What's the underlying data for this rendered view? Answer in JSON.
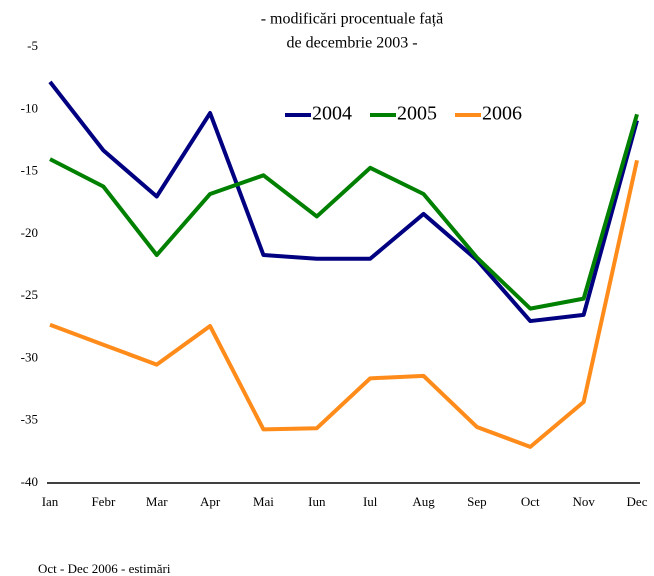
{
  "chart_data": {
    "type": "line",
    "title": [
      "- modificări procentuale față",
      "de decembrie 2003 -"
    ],
    "categories": [
      "Ian",
      "Febr",
      "Mar",
      "Apr",
      "Mai",
      "Iun",
      "Iul",
      "Aug",
      "Sep",
      "Oct",
      "Nov",
      "Dec"
    ],
    "series": [
      {
        "name": "2004",
        "color": "#000080",
        "values": [
          -7.8,
          -13.3,
          -17.0,
          -10.3,
          -21.7,
          -22.0,
          -22.0,
          -18.4,
          -22.1,
          -27.0,
          -26.5,
          -10.9
        ]
      },
      {
        "name": "2005",
        "color": "#008000",
        "values": [
          -14.0,
          -16.2,
          -21.7,
          -16.8,
          -15.3,
          -18.6,
          -14.7,
          -16.8,
          -21.9,
          -26.0,
          -25.2,
          -10.4
        ]
      },
      {
        "name": "2006",
        "color": "#ff8c1a",
        "values": [
          -27.3,
          -28.9,
          -30.5,
          -27.4,
          -35.7,
          -35.6,
          -31.6,
          -31.4,
          -35.5,
          -37.1,
          -33.5,
          -14.1
        ]
      }
    ],
    "ylim": [
      -40,
      -5
    ],
    "yticks": [
      -40,
      -35,
      -30,
      -25,
      -20,
      -15,
      -10,
      -5
    ],
    "note": "Oct - Dec 2006 - estimări"
  }
}
